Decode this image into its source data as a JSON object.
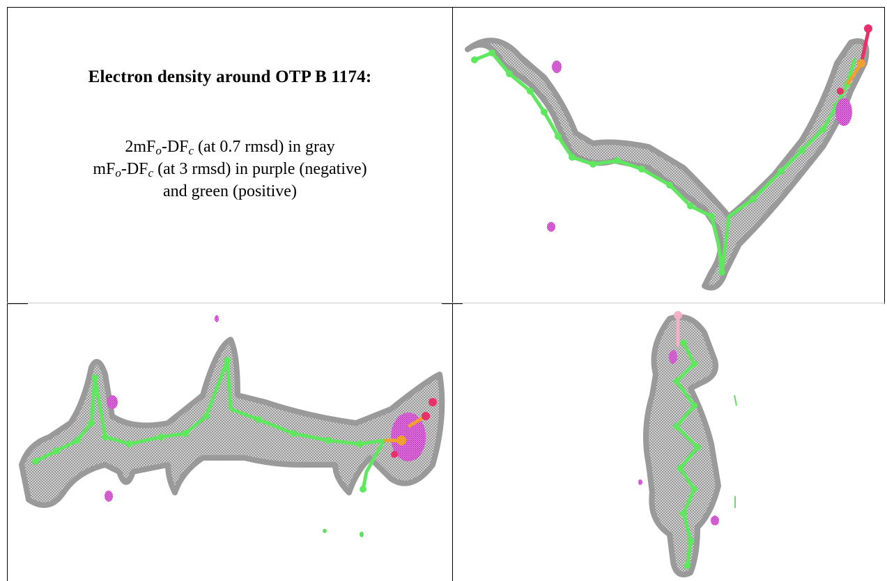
{
  "panel_text": {
    "title": "Electron density around OTP B 1174:",
    "line1": {
      "prefix": "2mF",
      "sub1": "o",
      "mid": "-DF",
      "sub2": "c",
      "suffix": " (at 0.7 rmsd) in gray"
    },
    "line2": {
      "prefix": "mF",
      "sub1": "o",
      "mid": "-DF",
      "sub2": "c",
      "suffix": " (at 3 rmsd) in purple (negative)"
    },
    "line3": "and green (positive)"
  },
  "colors": {
    "mesh_gray": "#8a8a8a",
    "carbon_green": "#5fe85f",
    "phosphorus_orange": "#f0a030",
    "oxygen_red": "#e8306a",
    "negative_purple": "#cc33cc",
    "positive_green": "#66dd66"
  },
  "images": [
    {
      "view": "top-right",
      "molecule": "OTP B 1174",
      "depicts": "2mFo-DFc and mFo-DFc maps"
    },
    {
      "view": "bottom-left",
      "molecule": "OTP B 1174",
      "depicts": "2mFo-DFc and mFo-DFc maps"
    },
    {
      "view": "bottom-right",
      "molecule": "OTP B 1174",
      "depicts": "2mFo-DFc and mFo-DFc maps"
    }
  ]
}
